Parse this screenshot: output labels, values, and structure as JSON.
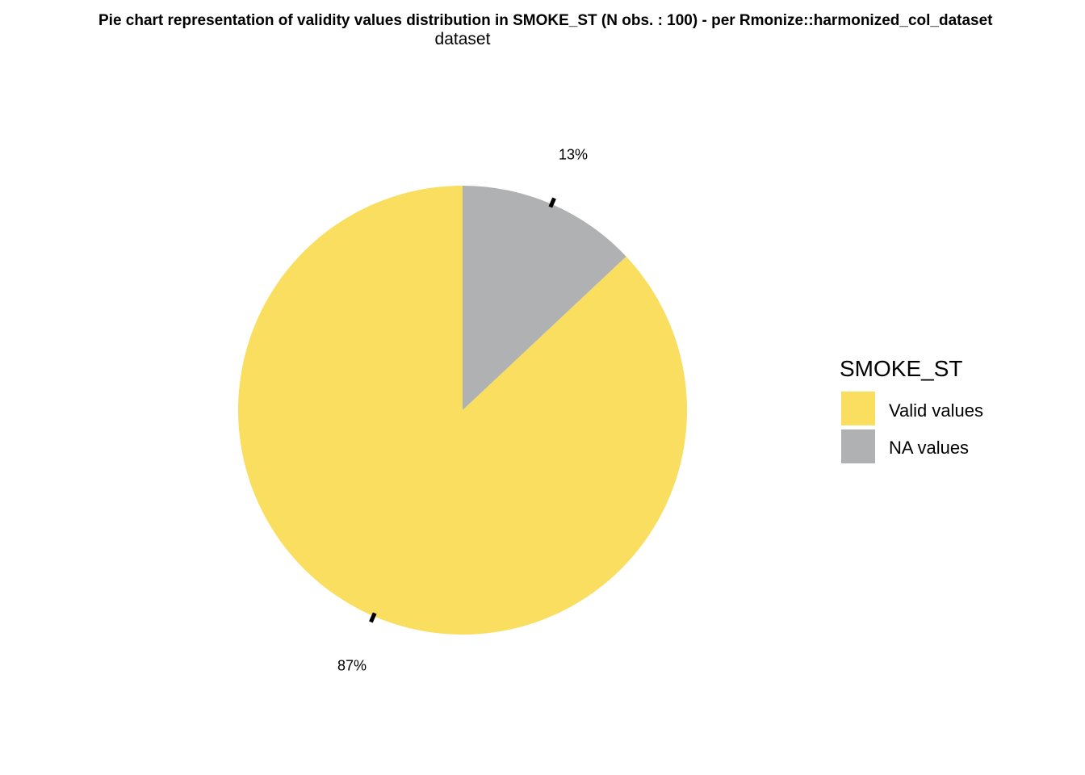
{
  "chart_data": {
    "type": "pie",
    "title": "Pie chart representation of validity values distribution in SMOKE_ST (N obs. : 100) - per Rmonize::harmonized_col_dataset",
    "subtitle": "dataset",
    "slices": [
      {
        "label": "Valid values",
        "value": 87,
        "percent_label": "87%",
        "color": "#FADE5F"
      },
      {
        "label": "NA values",
        "value": 13,
        "percent_label": "13%",
        "color": "#B0B1B2"
      }
    ],
    "legend": {
      "title": "SMOKE_ST",
      "placement": "right"
    }
  }
}
